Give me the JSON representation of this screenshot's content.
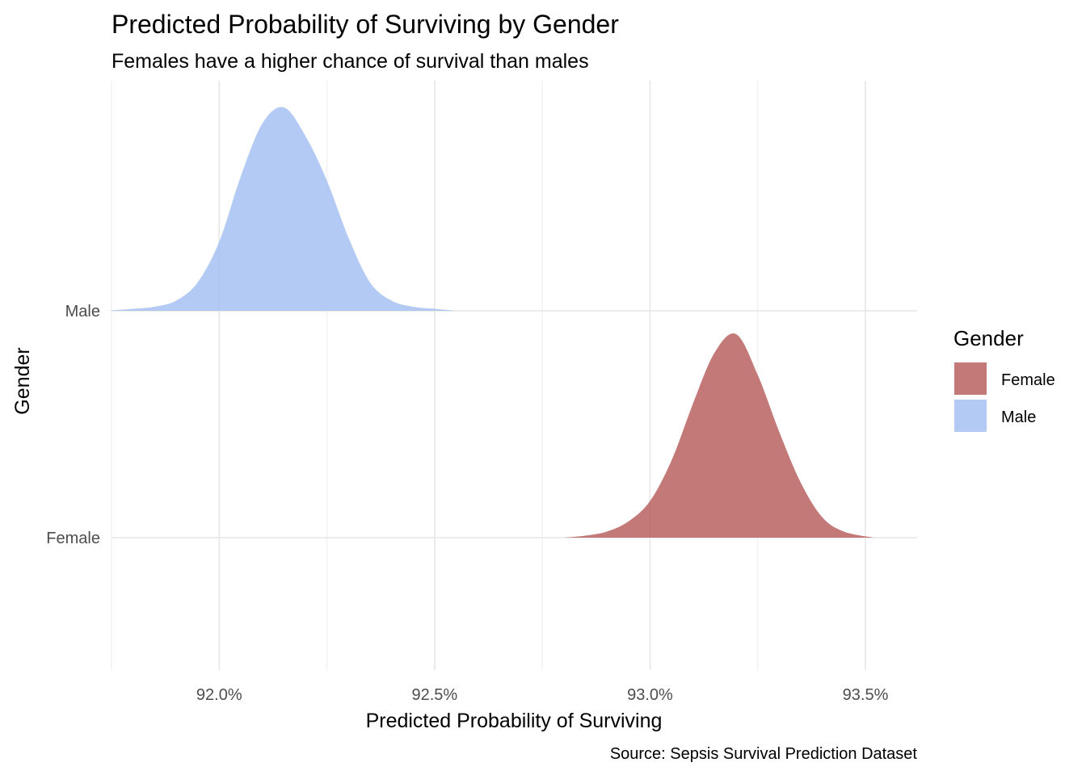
{
  "chart_data": {
    "type": "ridgeline-density",
    "title": "Predicted Probability of Surviving by Gender",
    "subtitle": "Females have a higher chance of survival than males",
    "xlabel": "Predicted Probability of Surviving",
    "ylabel": "Gender",
    "caption": "Source: Sepsis Survival Prediction Dataset",
    "xlim": [
      91.75,
      93.62
    ],
    "x_ticks": [
      92.0,
      92.5,
      93.0,
      93.5
    ],
    "x_tick_labels": [
      "92.0%",
      "92.5%",
      "93.0%",
      "93.5%"
    ],
    "minor_ticks": [
      91.75,
      92.25,
      92.75,
      93.25
    ],
    "categories": [
      "Female",
      "Male"
    ],
    "grid": true,
    "legend": {
      "title": "Gender",
      "position": "right",
      "items": [
        {
          "label": "Female",
          "color": "#b45353"
        },
        {
          "label": "Male",
          "color": "#9ebcf1"
        }
      ]
    },
    "series": [
      {
        "name": "Male",
        "color": "#9ebcf1",
        "x": [
          91.74,
          91.8,
          91.85,
          91.9,
          91.95,
          92.0,
          92.05,
          92.1,
          92.15,
          92.2,
          92.25,
          92.3,
          92.35,
          92.4,
          92.45,
          92.5,
          92.55
        ],
        "density": [
          0.0,
          0.01,
          0.02,
          0.05,
          0.14,
          0.34,
          0.66,
          0.92,
          1.0,
          0.86,
          0.64,
          0.36,
          0.14,
          0.05,
          0.02,
          0.01,
          0.0
        ]
      },
      {
        "name": "Female",
        "color": "#b45353",
        "x": [
          92.8,
          92.85,
          92.9,
          92.95,
          93.0,
          93.05,
          93.1,
          93.15,
          93.2,
          93.25,
          93.3,
          93.35,
          93.4,
          93.45,
          93.52
        ],
        "density": [
          0.0,
          0.01,
          0.03,
          0.08,
          0.18,
          0.38,
          0.66,
          0.91,
          1.0,
          0.8,
          0.52,
          0.27,
          0.1,
          0.03,
          0.0
        ]
      }
    ]
  }
}
